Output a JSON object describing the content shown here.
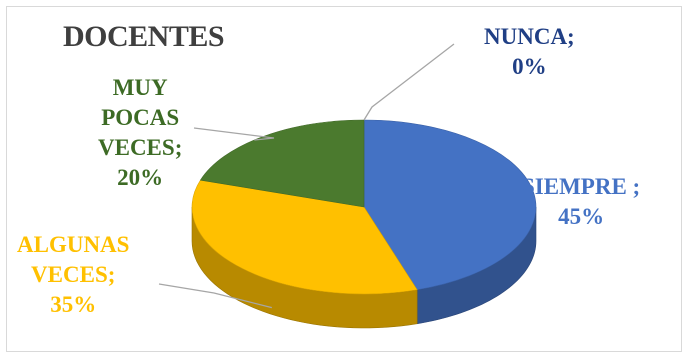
{
  "chart_data": {
    "type": "pie",
    "title": "DOCENTES",
    "slices": [
      {
        "label": "SIEMPRE",
        "value": 45,
        "label_lines": [
          "SIEMPRE ;",
          "45%"
        ],
        "color": "#4472c4",
        "text_color": "#4472c4"
      },
      {
        "label": "ALGUNAS VECES",
        "value": 35,
        "label_lines": [
          "ALGUNAS",
          "VECES;",
          "35%"
        ],
        "color": "#ffc000",
        "text_color": "#ffc000"
      },
      {
        "label": "MUY POCAS VECES",
        "value": 20,
        "label_lines": [
          "MUY",
          "POCAS",
          "VECES;",
          "20%"
        ],
        "color": "#4b7a2e",
        "text_color": "#3d6b25"
      },
      {
        "label": "NUNCA",
        "value": 0,
        "label_lines": [
          "NUNCA;",
          "0%"
        ],
        "color": "#1f3f86",
        "text_color": "#203f85"
      }
    ],
    "legend": "none",
    "style": "3d"
  }
}
